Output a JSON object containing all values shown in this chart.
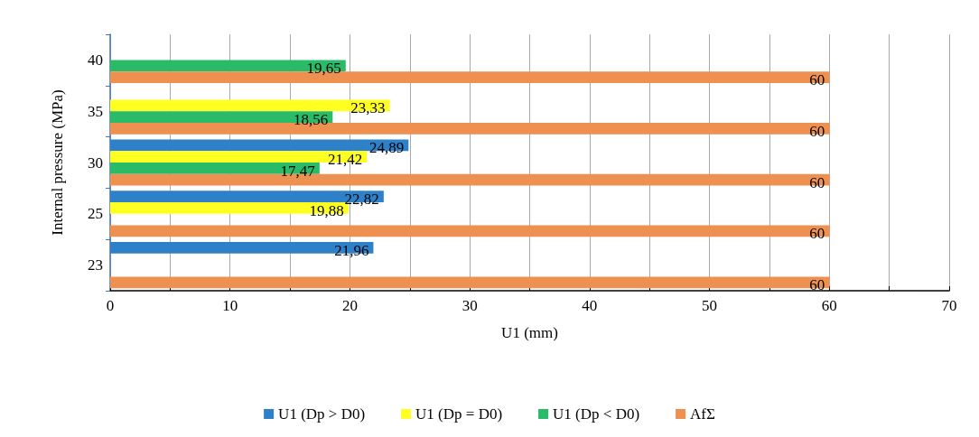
{
  "chart_data": {
    "type": "bar",
    "orientation": "horizontal",
    "xlabel": "U1 (mm)",
    "ylabel": "Internal pressure (MPa)",
    "categories": [
      "40",
      "35",
      "30",
      "25",
      "23"
    ],
    "series": [
      {
        "name": "U1 (Dp > D0)",
        "color": "#2e80c9",
        "values": [
          null,
          null,
          24.89,
          22.82,
          21.96
        ],
        "value_labels": [
          null,
          null,
          "24,89",
          "22,82",
          "21,96"
        ]
      },
      {
        "name": "U1 (Dp = D0)",
        "color": "#ffff22",
        "values": [
          null,
          23.33,
          21.42,
          19.88,
          null
        ],
        "value_labels": [
          null,
          "23,33",
          "21,42",
          "19,88",
          null
        ]
      },
      {
        "name": "U1 (Dp < D0)",
        "color": "#2abb68",
        "values": [
          19.65,
          18.56,
          17.47,
          null,
          null
        ],
        "value_labels": [
          "19,65",
          "18,56",
          "17,47",
          null,
          null
        ]
      },
      {
        "name": "AfΣ",
        "color": "#ee9150",
        "values": [
          60,
          60,
          60,
          60,
          60
        ],
        "value_labels": [
          "60",
          "60",
          "60",
          "60",
          "60"
        ]
      }
    ],
    "xlim": [
      0,
      70
    ],
    "xticks": [
      0,
      {
        "value": 5,
        "label": null
      },
      10,
      {
        "value": 15,
        "label": null
      },
      20,
      {
        "value": 25,
        "label": null
      },
      30,
      {
        "value": 35,
        "label": null
      },
      40,
      {
        "value": 45,
        "label": null
      },
      50,
      {
        "value": 55,
        "label": null
      },
      60,
      {
        "value": 65,
        "label": null
      },
      70
    ],
    "grid": "x",
    "legend": "bottom"
  }
}
